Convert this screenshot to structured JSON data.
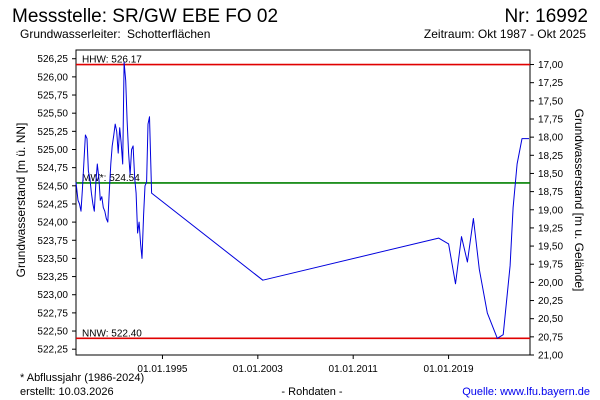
{
  "header": {
    "title": "Messstelle: SR/GW EBE FO 02",
    "number": "Nr: 16992",
    "aquifer_label": "Grundwasserleiter:",
    "aquifer_value": "Schotterflächen",
    "period": "Zeitraum: Okt 1987 - Okt 2025"
  },
  "footer": {
    "note": "* Abflussjahr (1986-2024)",
    "created": "erstellt:  10.03.2026",
    "raw": "- Rohdaten -",
    "source": "Quelle:  www.lfu.bayern.de"
  },
  "colors": {
    "series": "#0000dd",
    "extreme_line": "#e00000",
    "mean_line": "#008000",
    "frame": "#000000",
    "source_link": "#0000ee"
  },
  "chart_data": {
    "type": "line",
    "ylabel": "Grundwasserstand [m ü. NN]",
    "ylabel_right": "Grundwasserstand [m u. Gelände]",
    "ylim": [
      522.17,
      526.37
    ],
    "ylim_right": [
      21.0,
      16.8
    ],
    "y_ticks": [
      "526,25",
      "526,00",
      "525,75",
      "525,50",
      "525,25",
      "525,00",
      "524,75",
      "524,50",
      "524,25",
      "524,00",
      "523,75",
      "523,50",
      "523,25",
      "523,00",
      "522,75",
      "522,50",
      "522,25"
    ],
    "y_ticks_right": [
      "17,00",
      "17,25",
      "17,50",
      "17,75",
      "18,00",
      "18,25",
      "18,50",
      "18,75",
      "19,00",
      "19,25",
      "19,50",
      "19,75",
      "20,00",
      "20,25",
      "20,50",
      "20,75",
      "21,00"
    ],
    "x_ticks": [
      "01.01.1995",
      "01.01.2003",
      "01.01.2011",
      "01.01.2019"
    ],
    "xlim": [
      "1987-10-01",
      "2025-10-31"
    ],
    "reference_lines": [
      {
        "label": "HHW: 526.17",
        "value": 526.17,
        "kind": "extreme"
      },
      {
        "label": "MW*: 524.54",
        "value": 524.54,
        "kind": "mean"
      },
      {
        "label": "NNW: 522.40",
        "value": 522.4,
        "kind": "extreme"
      }
    ],
    "series": [
      {
        "x": [
          "1987-10-01",
          "1987-12-01",
          "1988-01-15",
          "1988-03-01",
          "1988-04-15",
          "1988-06-01",
          "1988-07-15",
          "1988-09-01",
          "1988-10-15",
          "1988-12-01",
          "1989-01-15",
          "1989-03-01",
          "1989-04-15",
          "1989-06-01",
          "1989-07-15",
          "1989-09-01",
          "1989-10-15",
          "1989-12-01",
          "1990-01-15",
          "1990-03-01",
          "1990-04-15",
          "1990-06-01",
          "1990-07-15",
          "1990-09-01",
          "1990-10-15",
          "1990-12-01",
          "1991-01-15",
          "1991-03-01",
          "1991-04-15",
          "1991-06-01",
          "1991-07-15",
          "1991-09-01",
          "1991-10-15",
          "1991-12-01",
          "1992-01-15",
          "1992-03-01",
          "1992-04-15",
          "1992-06-01",
          "1992-07-15",
          "1992-09-01",
          "1992-10-15",
          "1992-12-01",
          "1993-01-15",
          "1993-03-01",
          "1993-04-15",
          "1993-06-01",
          "1993-07-15",
          "1993-09-01",
          "1993-10-15",
          "1993-12-01",
          "1994-02-01",
          "2003-06-01",
          "2018-03-01",
          "2019-01-01",
          "2019-08-01",
          "2020-02-01",
          "2020-08-01",
          "2021-02-01",
          "2021-08-01",
          "2022-04-01",
          "2023-02-01",
          "2023-08-01",
          "2024-03-01",
          "2024-06-01",
          "2024-10-01",
          "2025-03-01",
          "2025-10-01"
        ],
        "y": [
          524.55,
          524.3,
          524.25,
          524.15,
          524.45,
          524.85,
          525.2,
          525.15,
          524.7,
          524.6,
          524.4,
          524.25,
          524.15,
          524.55,
          524.8,
          524.6,
          524.3,
          524.35,
          524.2,
          524.15,
          524.05,
          524.0,
          524.4,
          524.8,
          525.05,
          525.2,
          525.35,
          525.25,
          524.95,
          525.3,
          525.1,
          524.8,
          526.2,
          525.95,
          525.4,
          524.95,
          524.65,
          525.0,
          525.05,
          524.6,
          524.4,
          523.85,
          524.0,
          523.7,
          523.5,
          524.1,
          524.5,
          524.55,
          525.35,
          525.45,
          524.4,
          523.2,
          523.78,
          523.7,
          523.15,
          523.8,
          523.45,
          524.05,
          523.35,
          522.75,
          522.4,
          522.45,
          523.4,
          524.2,
          524.8,
          525.15,
          525.15
        ]
      }
    ]
  }
}
